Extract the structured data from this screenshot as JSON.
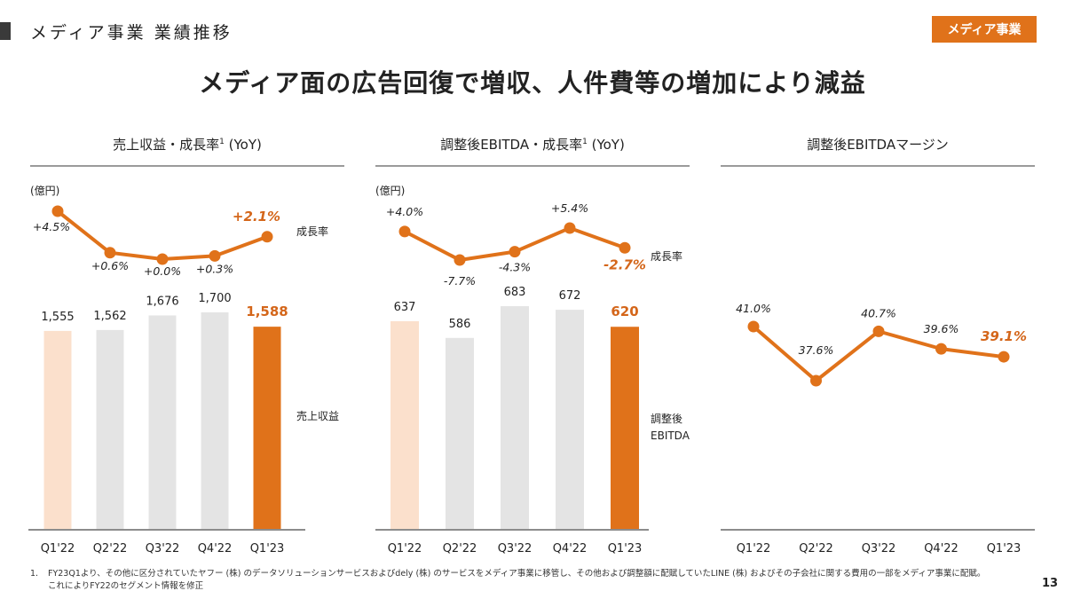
{
  "header": {
    "section_title": "メディア事業 業績推移",
    "badge": "メディア事業",
    "headline": "メディア面の広告回復で増収、人件費等の増加により減益"
  },
  "colors": {
    "accent": "#e0721a",
    "highlight_text": "#d4661a",
    "bar_first": "#fbe0cc",
    "bar_mid": "#e4e4e4",
    "line": "#e0721a",
    "axis": "#8c8c8c"
  },
  "chart_data": [
    {
      "type": "bar+line",
      "title": "売上収益・成長率",
      "title_superscript": "1",
      "title_suffix": " (YoY)",
      "unit": "(億円)",
      "categories": [
        "Q1'22",
        "Q2'22",
        "Q3'22",
        "Q4'22",
        "Q1'23"
      ],
      "bar_series": {
        "name": "売上収益",
        "values": [
          1555,
          1562,
          1676,
          1700,
          1588
        ],
        "labels": [
          "1,555",
          "1,562",
          "1,676",
          "1,700",
          "1,588"
        ]
      },
      "line_series": {
        "name": "成長率",
        "values": [
          4.5,
          0.6,
          0.0,
          0.3,
          2.1
        ],
        "labels": [
          "+4.5%",
          "+0.6%",
          "+0.0%",
          "+0.3%",
          "+2.1%"
        ]
      },
      "highlight_index": 4
    },
    {
      "type": "bar+line",
      "title": "調整後EBITDA・成長率",
      "title_superscript": "1",
      "title_suffix": " (YoY)",
      "unit": "(億円)",
      "categories": [
        "Q1'22",
        "Q2'22",
        "Q3'22",
        "Q4'22",
        "Q1'23"
      ],
      "bar_series": {
        "name": "調整後EBITDA",
        "name_lines": [
          "調整後",
          "EBITDA"
        ],
        "values": [
          637,
          586,
          683,
          672,
          620
        ],
        "labels": [
          "637",
          "586",
          "683",
          "672",
          "620"
        ]
      },
      "line_series": {
        "name": "成長率",
        "values": [
          4.0,
          -7.7,
          -4.3,
          5.4,
          -2.7
        ],
        "labels": [
          "+4.0%",
          "-7.7%",
          "-4.3%",
          "+5.4%",
          "-2.7%"
        ]
      },
      "highlight_index": 4
    },
    {
      "type": "line",
      "title": "調整後EBITDAマージン",
      "categories": [
        "Q1'22",
        "Q2'22",
        "Q3'22",
        "Q4'22",
        "Q1'23"
      ],
      "line_series": {
        "name": "調整後EBITDAマージン",
        "values": [
          41.0,
          37.6,
          40.7,
          39.6,
          39.1
        ],
        "labels": [
          "41.0%",
          "37.6%",
          "40.7%",
          "39.6%",
          "39.1%"
        ]
      },
      "highlight_index": 4
    }
  ],
  "footnote": {
    "number": "1.",
    "line1": "FY23Q1より、その他に区分されていたヤフー (株) のデータソリューションサービスおよびdely (株) のサービスをメディア事業に移管し、その他および調整額に配賦していたLINE (株) およびその子会社に関する費用の一部をメディア事業に配賦。",
    "line2": "これによりFY22のセグメント情報を修正"
  },
  "page_number": "13"
}
